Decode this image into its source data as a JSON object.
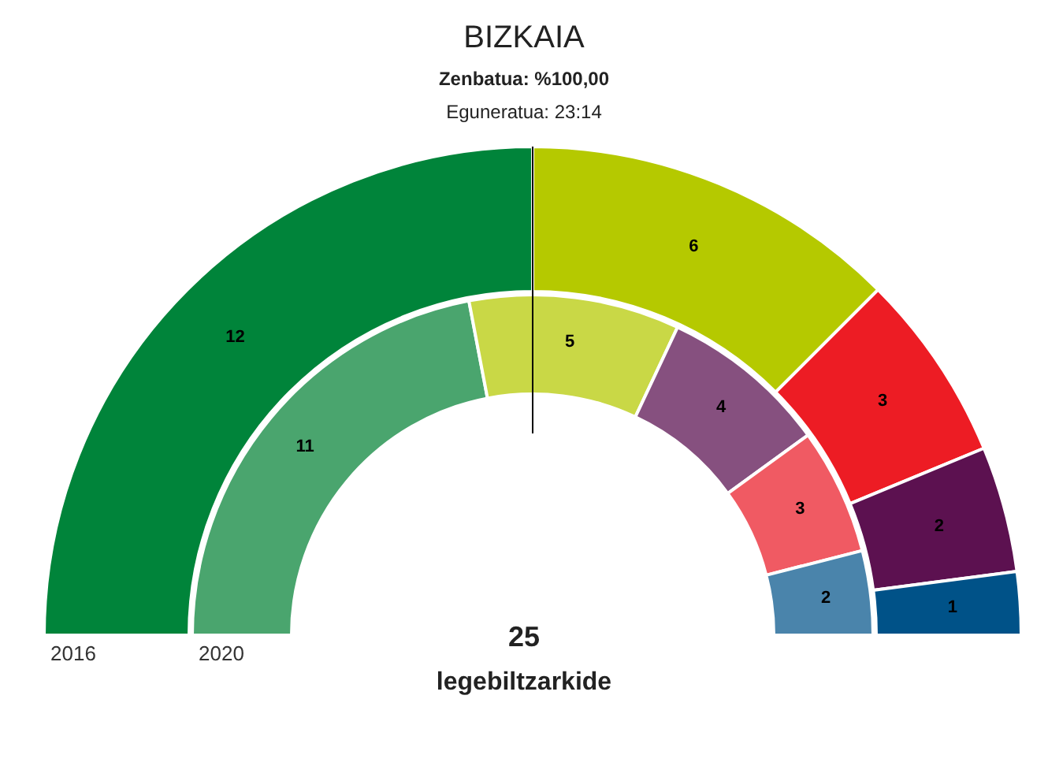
{
  "chart_data": {
    "type": "donut",
    "title": "BIZKAIA",
    "subtitle": "Zenbatua: %100,00",
    "annotations": [
      "Eguneratua: 23:14",
      "25",
      "legebiltzarkide"
    ],
    "categories": [
      null,
      null,
      null,
      null,
      null
    ],
    "series": [
      {
        "name": "2016",
        "colors": [
          "#00843a",
          "#b5c900",
          "#ed1c24",
          "#5c1150",
          "#005288"
        ],
        "values": [
          12,
          6,
          3,
          2,
          1
        ]
      },
      {
        "name": "2020",
        "colors": [
          "#4aa56e",
          "#c9d846",
          "#86507f",
          "#f05a63",
          "#4a84ab"
        ],
        "values": [
          11,
          5,
          4,
          3,
          2
        ]
      }
    ],
    "data_labels": true,
    "legend": false
  }
}
